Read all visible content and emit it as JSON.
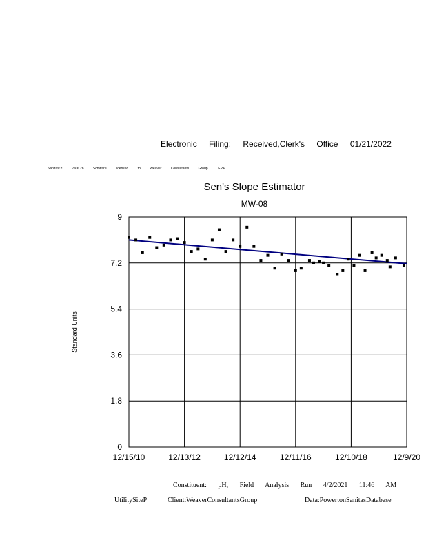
{
  "header": {
    "filing_text": "Electronic Filing: Received,Clerk's Office 01/21/2022",
    "software_text": "Sanitas™ v.9.6.28 Software licensed to Weaver Consultants Group. EPA"
  },
  "footer": {
    "constituent_text": "Constituent: pH, Field Analysis Run 4/2/2021 11:46 AM",
    "site_text": "UtilitySiteP",
    "client_text": "Client:WeaverConsultantsGroup",
    "database_text": "Data:PowertonSanitasDatabase"
  },
  "chart_data": {
    "type": "scatter",
    "title": "Sen's Slope Estimator",
    "subtitle": "MW-08",
    "ylabel": "Standard Units",
    "xlabel": "",
    "x_tick_labels": [
      "12/15/10",
      "12/13/12",
      "12/12/14",
      "12/11/16",
      "12/10/18",
      "12/9/20"
    ],
    "y_tick_labels": [
      "0",
      "1.8",
      "3.6",
      "5.4",
      "7.2",
      "9"
    ],
    "ylim": [
      0,
      9
    ],
    "xlim": [
      0,
      10
    ],
    "grid": true,
    "colors": {
      "trend": "#000080",
      "points": "#000000"
    },
    "series": [
      {
        "x": [
          0.0,
          0.25,
          0.49,
          0.75,
          1.0,
          1.26,
          1.5,
          1.75,
          2.0,
          2.25,
          2.49,
          2.75,
          3.0,
          3.25,
          3.49,
          3.75,
          4.0,
          4.25,
          4.5,
          4.75,
          5.0,
          5.25,
          5.5,
          5.75,
          6.0,
          6.2,
          6.5,
          6.65,
          6.85,
          7.0,
          7.2,
          7.5,
          7.7,
          7.9,
          8.1,
          8.3,
          8.5,
          8.75,
          8.9,
          9.1,
          9.3,
          9.4,
          9.6,
          9.9
        ],
        "y": [
          8.2,
          8.1,
          7.6,
          8.2,
          7.8,
          7.9,
          8.1,
          8.15,
          8.0,
          7.65,
          7.75,
          7.35,
          8.1,
          8.5,
          7.65,
          8.1,
          7.85,
          8.6,
          7.85,
          7.3,
          7.5,
          7.0,
          7.55,
          7.3,
          6.9,
          7.0,
          7.3,
          7.2,
          7.25,
          7.2,
          7.1,
          6.75,
          6.9,
          7.35,
          7.1,
          7.5,
          6.9,
          7.6,
          7.4,
          7.5,
          7.3,
          7.05,
          7.4,
          7.1
        ]
      }
    ],
    "trend": {
      "x": [
        0,
        10
      ],
      "y": [
        8.1,
        7.17
      ]
    }
  }
}
